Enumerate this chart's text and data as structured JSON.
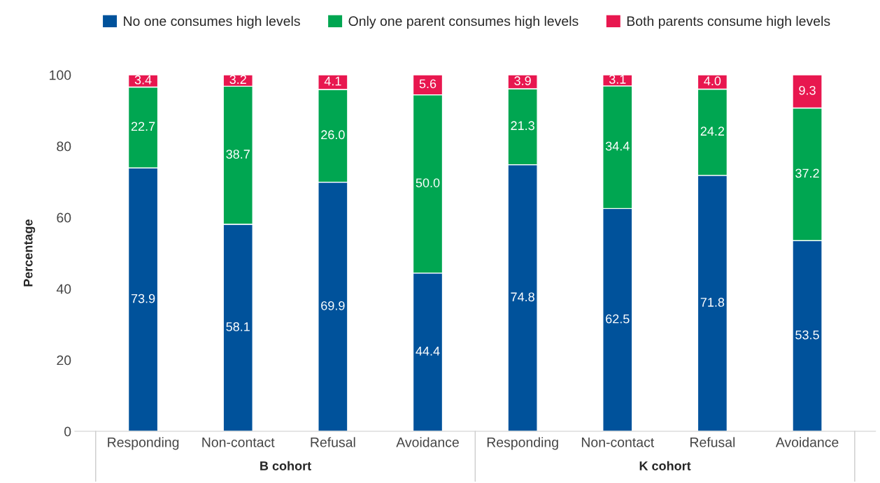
{
  "chart_data": {
    "type": "bar",
    "stacked": true,
    "ylabel": "Percentage",
    "categories": [
      "Responding",
      "Non-contact",
      "Refusal",
      "Avoidance",
      "Responding",
      "Non-contact",
      "Refusal",
      "Avoidance"
    ],
    "series": [
      {
        "name": "No one consumes high levels",
        "color": "#00529b",
        "values": [
          73.9,
          58.1,
          69.9,
          44.4,
          74.8,
          62.5,
          71.8,
          53.5
        ],
        "value_labels": [
          "73.9",
          "58.1",
          "69.9",
          "44.4",
          "74.8",
          "62.5",
          "71.8",
          "53.5"
        ]
      },
      {
        "name": "Only one parent consumes high levels",
        "color": "#00a651",
        "values": [
          22.7,
          38.7,
          26.0,
          50.0,
          21.3,
          34.4,
          24.2,
          37.2
        ],
        "value_labels": [
          "22.7",
          "38.7",
          "26.0",
          "50.0",
          "21.3",
          "34.4",
          "24.2",
          "37.2"
        ]
      },
      {
        "name": "Both parents consume high levels",
        "color": "#e8174f",
        "values": [
          3.4,
          3.2,
          4.1,
          5.6,
          3.9,
          3.1,
          4.0,
          9.3
        ],
        "value_labels": [
          "3.4",
          "3.2",
          "4.1",
          "5.6",
          "3.9",
          "3.1",
          "4.0",
          "9.3"
        ]
      }
    ],
    "annotations": [
      "B cohort",
      "K cohort"
    ],
    "ylim": [
      0,
      100
    ],
    "yticks": [
      0,
      20,
      40,
      60,
      80,
      100
    ],
    "legend": "top",
    "grid": false
  }
}
